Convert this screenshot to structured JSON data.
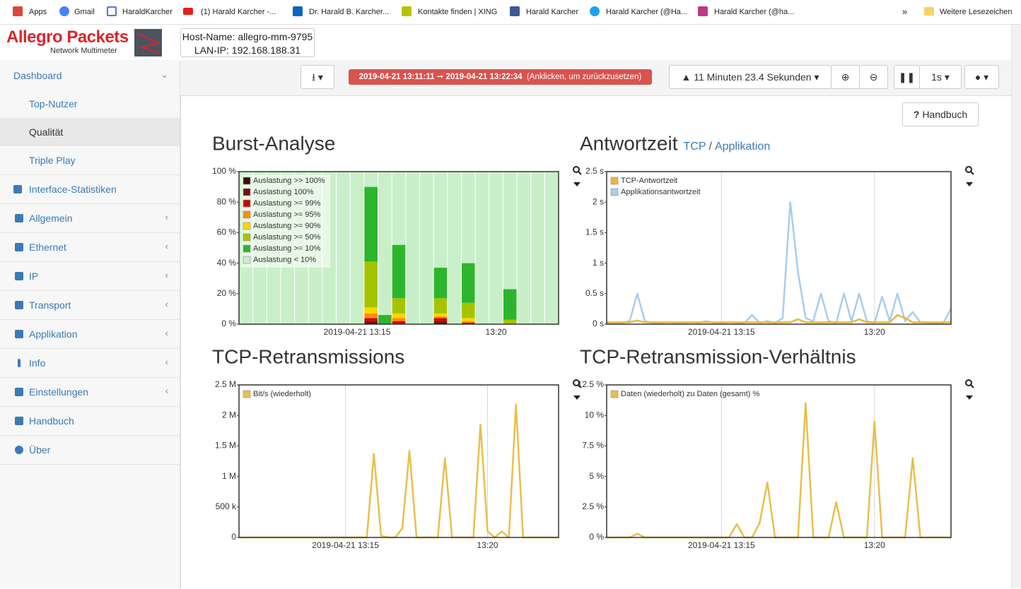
{
  "bookmarks": {
    "items": [
      "Apps",
      "Gmail",
      "HaraldKarcher",
      "(1) Harald Karcher -...",
      "Dr. Harald B. Karcher...",
      "Kontakte finden | XING",
      "Harald Karcher",
      "Harald Karcher (@Ha...",
      "Harald Karcher (@ha..."
    ],
    "more": "»",
    "folder": "Weitere Lesezeichen"
  },
  "header": {
    "brand": "Allegro Packets",
    "product": "Network Multimeter",
    "host_name": "Host-Name: allegro-mm-9795",
    "lan_ip": "LAN-IP: 192.168.188.31"
  },
  "sidebar": {
    "dashboard": "Dashboard",
    "subitems": [
      "Top-Nutzer",
      "Qualität",
      "Triple Play"
    ],
    "items": [
      "Interface-Statistiken",
      "Allgemein",
      "Ethernet",
      "IP",
      "Transport",
      "Applikation",
      "Info",
      "Einstellungen",
      "Handbuch",
      "Über"
    ]
  },
  "toolbar": {
    "time_range": "2019-04-21 13:11:11 ➞ 2019-04-21 13:22:34",
    "reset_hint": "(Anklicken, um zurückzusetzen)",
    "duration": "11 Minuten 23.4 Sekunden",
    "interval": "1s",
    "help": "Handbuch"
  },
  "chart_data": [
    {
      "type": "bar",
      "stacked": true,
      "title": "Burst-Analyse",
      "title_color": "#3a7ab8",
      "categories": [
        null,
        null,
        null,
        null,
        null,
        null,
        null,
        null,
        "2019-04-21 13:15",
        null,
        null,
        null,
        null,
        null,
        null,
        null,
        null,
        null,
        "13:20",
        null,
        null,
        null,
        null
      ],
      "series": [
        {
          "name": "Auslastung >> 100%",
          "color": "#3b0b0b",
          "values": [
            0,
            0,
            0,
            0,
            0,
            0,
            0,
            0,
            0,
            1,
            0,
            0,
            0,
            0,
            1,
            0,
            0,
            0,
            0,
            0,
            0,
            0,
            0
          ]
        },
        {
          "name": "Auslastung 100%",
          "color": "#7a0b0b",
          "values": [
            0,
            0,
            0,
            0,
            0,
            0,
            0,
            0,
            0,
            1,
            0,
            0,
            0,
            0,
            1,
            0,
            0,
            0,
            0,
            0,
            0,
            0,
            0
          ]
        },
        {
          "name": "Auslastung >= 99%",
          "color": "#d40000",
          "values": [
            0,
            0,
            0,
            0,
            0,
            0,
            0,
            0,
            0,
            2,
            0,
            2,
            0,
            0,
            2,
            0,
            1,
            0,
            0,
            0,
            0,
            0,
            0
          ]
        },
        {
          "name": "Auslastung >= 95%",
          "color": "#ff8c00",
          "values": [
            0,
            0,
            0,
            0,
            0,
            0,
            0,
            0,
            0,
            3,
            0,
            2,
            0,
            0,
            1,
            0,
            1,
            0,
            0,
            0,
            0,
            0,
            0
          ]
        },
        {
          "name": "Auslastung >= 90%",
          "color": "#ffd500",
          "values": [
            0,
            0,
            0,
            0,
            0,
            0,
            0,
            0,
            0,
            4,
            0,
            3,
            0,
            0,
            2,
            0,
            2,
            0,
            0,
            0,
            0,
            0,
            0
          ]
        },
        {
          "name": "Auslastung >= 50%",
          "color": "#a5c400",
          "values": [
            0,
            0,
            0,
            0,
            0,
            0,
            0,
            0,
            0,
            30,
            0,
            10,
            0,
            0,
            10,
            0,
            10,
            0,
            0,
            3,
            0,
            0,
            0
          ]
        },
        {
          "name": "Auslastung >= 10%",
          "color": "#2db52d",
          "values": [
            0,
            0,
            0,
            0,
            0,
            0,
            0,
            0,
            0,
            49,
            6,
            35,
            0,
            0,
            20,
            0,
            26,
            0,
            0,
            20,
            0,
            0,
            0
          ]
        },
        {
          "name": "Auslastung < 10%",
          "color": "#c9efc9",
          "values": [
            100,
            100,
            100,
            100,
            100,
            100,
            100,
            100,
            100,
            10,
            94,
            48,
            100,
            100,
            63,
            100,
            60,
            100,
            100,
            77,
            100,
            100,
            100
          ]
        }
      ],
      "ylim": [
        0,
        100
      ],
      "yticks": [
        {
          "value": 0,
          "label": "0 %"
        },
        {
          "value": 20,
          "label": "20 %"
        },
        {
          "value": 40,
          "label": "40 %"
        },
        {
          "value": 60,
          "label": "60 %"
        },
        {
          "value": 80,
          "label": "80 %"
        },
        {
          "value": 100,
          "label": "100 %"
        }
      ],
      "grid": false
    },
    {
      "type": "line",
      "title": "Antwortzeit",
      "title_color": "#222222",
      "title_links": [
        "TCP",
        "Applikation"
      ],
      "title_link_separator": "/",
      "categories": [
        null,
        null,
        null,
        null,
        null,
        null,
        null,
        null,
        null,
        null,
        null,
        null,
        null,
        null,
        null,
        "2019-04-21 13:15",
        null,
        null,
        null,
        null,
        null,
        null,
        null,
        null,
        null,
        null,
        null,
        null,
        null,
        null,
        null,
        null,
        null,
        null,
        null,
        "13:20",
        null,
        null,
        null,
        null,
        null,
        null,
        null,
        null,
        null,
        null
      ],
      "series": [
        {
          "name": "TCP-Antwortzeit",
          "color": "#e8b83c",
          "values": [
            0.03,
            0.03,
            0.03,
            0.03,
            0.06,
            0.03,
            0.03,
            0.03,
            0.03,
            0.03,
            0.03,
            0.03,
            0.03,
            0.03,
            0.03,
            0.03,
            0.03,
            0.03,
            0.03,
            0.03,
            0.03,
            0.03,
            0.03,
            0.03,
            0.03,
            0.08,
            0.03,
            0.03,
            0.03,
            0.03,
            0.03,
            0.03,
            0.03,
            0.08,
            0.03,
            0.03,
            0.03,
            0.03,
            0.15,
            0.1,
            0.03,
            0.03,
            0.03,
            0.03,
            0.03,
            0.03
          ]
        },
        {
          "name": "Applikationsantwortzeit",
          "color": "#a9cdea",
          "values": [
            0.02,
            0.02,
            0.02,
            0.05,
            0.5,
            0.05,
            0.02,
            0.02,
            0.03,
            0.02,
            0.02,
            0.03,
            0.02,
            0.05,
            0.02,
            0.02,
            0.03,
            0.02,
            0.02,
            0.15,
            0.02,
            0.05,
            0.02,
            0.1,
            2,
            0.85,
            0.1,
            0.05,
            0.5,
            0.05,
            0.02,
            0.5,
            0.05,
            0.5,
            0.05,
            0.02,
            0.45,
            0.05,
            0.5,
            0.05,
            0.2,
            0.03,
            0.02,
            0.02,
            0.02,
            0.25
          ]
        }
      ],
      "ylim": [
        0,
        2.5
      ],
      "yticks": [
        {
          "value": 0,
          "label": "0 s"
        },
        {
          "value": 0.5,
          "label": "0.5 s"
        },
        {
          "value": 1,
          "label": "1 s"
        },
        {
          "value": 1.5,
          "label": "1.5 s"
        },
        {
          "value": 2,
          "label": "2 s"
        },
        {
          "value": 2.5,
          "label": "2.5 s"
        }
      ],
      "grid": true
    },
    {
      "type": "line",
      "title": "TCP-Retransmissions",
      "title_color": "#3a7ab8",
      "categories": [
        null,
        null,
        null,
        null,
        null,
        null,
        null,
        null,
        null,
        null,
        null,
        null,
        null,
        null,
        null,
        "2019-04-21 13:15",
        null,
        null,
        null,
        null,
        null,
        null,
        null,
        null,
        null,
        null,
        null,
        null,
        null,
        null,
        null,
        null,
        null,
        null,
        null,
        "13:20",
        null,
        null,
        null,
        null,
        null,
        null,
        null,
        null,
        null,
        null
      ],
      "series": [
        {
          "name": "Bit/s (wiederholt)",
          "color": "#e8bf4a",
          "values": [
            0,
            0,
            0,
            0,
            0,
            0,
            0,
            0,
            0,
            0,
            0,
            0,
            0,
            0,
            0,
            0,
            0,
            0,
            0,
            1370000,
            30000,
            0,
            0,
            150000,
            1420000,
            0,
            0,
            0,
            0,
            1300000,
            0,
            0,
            0,
            0,
            1850000,
            100000,
            0,
            100000,
            0,
            2180000,
            0,
            0,
            0,
            0,
            0,
            0
          ]
        }
      ],
      "ylim": [
        0,
        2500000
      ],
      "yticks": [
        0,
        {
          "value": 500000,
          "label": "500 k"
        },
        {
          "value": 1000000,
          "label": "1 M"
        },
        {
          "value": 1500000,
          "label": "1.5 M"
        },
        {
          "value": 2000000,
          "label": "2 M"
        },
        {
          "value": 2500000,
          "label": "2.5 M"
        }
      ],
      "grid": true
    },
    {
      "type": "line",
      "title": "TCP-Retransmission-Verhältnis",
      "title_color": "#3a7ab8",
      "categories": [
        null,
        null,
        null,
        null,
        null,
        null,
        null,
        null,
        null,
        null,
        null,
        null,
        null,
        null,
        null,
        "2019-04-21 13:15",
        null,
        null,
        null,
        null,
        null,
        null,
        null,
        null,
        null,
        null,
        null,
        null,
        null,
        null,
        null,
        null,
        null,
        null,
        null,
        "13:20",
        null,
        null,
        null,
        null,
        null,
        null,
        null,
        null,
        null,
        null
      ],
      "series": [
        {
          "name": "Daten (wiederholt) zu Daten (gesamt) %",
          "color": "#e8bf4a",
          "values": [
            0,
            0,
            0,
            0,
            0.3,
            0,
            0,
            0,
            0,
            0,
            0,
            0,
            0,
            0,
            0,
            0,
            0,
            1.1,
            0,
            0,
            1.2,
            4.5,
            0,
            0,
            0,
            0,
            11,
            0,
            0,
            0,
            2.9,
            0,
            0,
            0,
            0,
            9.5,
            0,
            0,
            0,
            0,
            6.5,
            0,
            0,
            0,
            0,
            0
          ]
        }
      ],
      "ylim": [
        0,
        12.5
      ],
      "yticks": [
        {
          "value": 0,
          "label": "0 %"
        },
        {
          "value": 2.5,
          "label": "2.5 %"
        },
        {
          "value": 5,
          "label": "5 %"
        },
        {
          "value": 7.5,
          "label": "7.5 %"
        },
        {
          "value": 10,
          "label": "10 %"
        },
        {
          "value": 12.5,
          "label": "12.5 %"
        }
      ],
      "grid": true
    }
  ]
}
